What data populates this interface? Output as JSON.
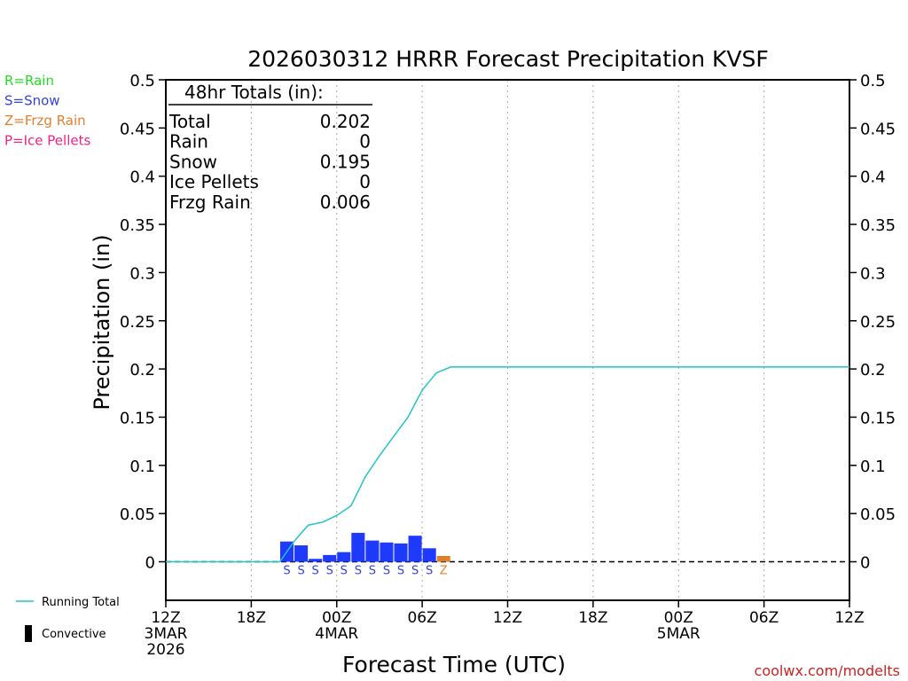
{
  "chart_data": {
    "type": "bar",
    "title": "2026030312 HRRR Forecast Precipitation KVSF",
    "xlabel": "Forecast Time (UTC)",
    "ylabel": "Precipitation (in)",
    "ylim": [
      -0.04,
      0.5
    ],
    "y_ticks": [
      "0.5",
      "0.45",
      "0.4",
      "0.35",
      "0.3",
      "0.25",
      "0.2",
      "0.15",
      "0.1",
      "0.05",
      "0"
    ],
    "x_range_hours": [
      0,
      48
    ],
    "x_ticks": [
      {
        "hour": 0,
        "label": "12Z",
        "sub": [
          "3MAR",
          "2026"
        ]
      },
      {
        "hour": 6,
        "label": "18Z",
        "sub": []
      },
      {
        "hour": 12,
        "label": "00Z",
        "sub": [
          "4MAR"
        ]
      },
      {
        "hour": 18,
        "label": "06Z",
        "sub": []
      },
      {
        "hour": 24,
        "label": "12Z",
        "sub": []
      },
      {
        "hour": 30,
        "label": "18Z",
        "sub": []
      },
      {
        "hour": 36,
        "label": "00Z",
        "sub": [
          "5MAR"
        ]
      },
      {
        "hour": 42,
        "label": "06Z",
        "sub": []
      },
      {
        "hour": 48,
        "label": "12Z",
        "sub": []
      }
    ],
    "type_legend": [
      {
        "text": "R=Rain",
        "color": "#22dd22"
      },
      {
        "text": "S=Snow",
        "color": "#3344dd"
      },
      {
        "text": "Z=Frzg Rain",
        "color": "#e08030"
      },
      {
        "text": "P=Ice Pellets",
        "color": "#ee2288"
      }
    ],
    "totals": {
      "heading": "48hr Totals (in):",
      "rows": [
        {
          "label": "Total",
          "value": "0.202"
        },
        {
          "label": "Rain",
          "value": "0"
        },
        {
          "label": "Snow",
          "value": "0.195"
        },
        {
          "label": "Ice Pellets",
          "value": "0"
        },
        {
          "label": "Frzg Rain",
          "value": "0.006"
        }
      ]
    },
    "hourly_precip": [
      {
        "hour": 9,
        "value": 0.021,
        "type": "S"
      },
      {
        "hour": 10,
        "value": 0.017,
        "type": "S"
      },
      {
        "hour": 11,
        "value": 0.003,
        "type": "S"
      },
      {
        "hour": 12,
        "value": 0.007,
        "type": "S"
      },
      {
        "hour": 13,
        "value": 0.01,
        "type": "S"
      },
      {
        "hour": 14,
        "value": 0.03,
        "type": "S"
      },
      {
        "hour": 15,
        "value": 0.022,
        "type": "S"
      },
      {
        "hour": 16,
        "value": 0.02,
        "type": "S"
      },
      {
        "hour": 17,
        "value": 0.019,
        "type": "S"
      },
      {
        "hour": 18,
        "value": 0.027,
        "type": "S"
      },
      {
        "hour": 19,
        "value": 0.014,
        "type": "S"
      },
      {
        "hour": 20,
        "value": 0.006,
        "type": "Z"
      }
    ],
    "running_total": {
      "name": "Running Total",
      "color": "#22c4c4",
      "x": [
        0,
        8,
        9,
        10,
        11,
        12,
        13,
        14,
        15,
        16,
        17,
        18,
        19,
        20,
        48
      ],
      "y": [
        0,
        0,
        0.021,
        0.038,
        0.041,
        0.048,
        0.058,
        0.088,
        0.11,
        0.13,
        0.15,
        0.178,
        0.196,
        0.202,
        0.202
      ]
    },
    "series_legend": [
      {
        "label": "Running Total",
        "color": "#22c4c4",
        "symbol": "line"
      },
      {
        "label": "Convective",
        "color": "#000000",
        "symbol": "bar"
      }
    ],
    "colors": {
      "S": "#1f3aff",
      "Z": "#e07f2a",
      "R": "#22dd22",
      "P": "#ee2288",
      "S_label": "#3344dd",
      "Z_label": "#e08030"
    },
    "grid": "vertical dotted"
  },
  "credit": "coolwx.com/modelts"
}
